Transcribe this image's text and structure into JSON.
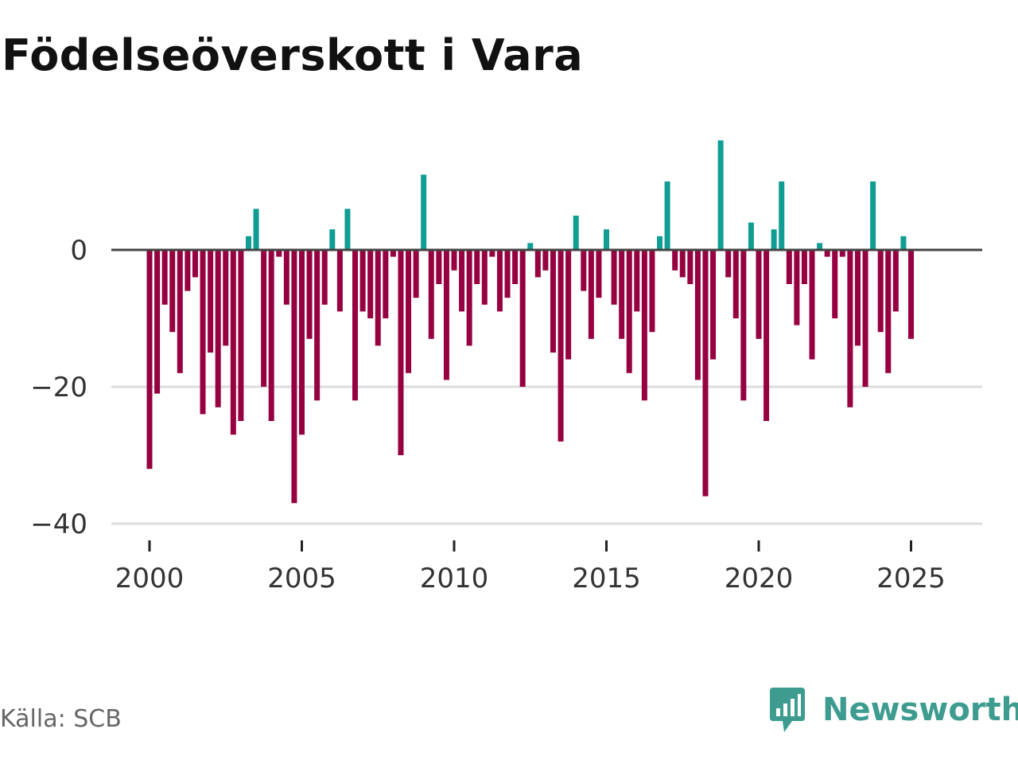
{
  "chart_data": {
    "type": "bar",
    "title": "Födelseöverskott i Vara",
    "xlabel": "",
    "ylabel": "",
    "ylim": [
      -42,
      17
    ],
    "yticks": [
      0,
      -20,
      -40
    ],
    "ytick_labels": [
      "0",
      "−20",
      "−40"
    ],
    "xticks": [
      2000,
      2005,
      2010,
      2015,
      2020,
      2025
    ],
    "xtick_labels": [
      "2000",
      "2005",
      "2010",
      "2015",
      "2020",
      "2025"
    ],
    "x_start": 2000.0,
    "x_step_years": 0.25,
    "positive_color": "#0f9d94",
    "negative_color": "#960040",
    "values": [
      -32,
      -21,
      -8,
      -12,
      -18,
      -6,
      -4,
      -24,
      -15,
      -23,
      -14,
      -27,
      -25,
      2,
      6,
      -20,
      -25,
      -1,
      -8,
      -37,
      -27,
      -13,
      -22,
      -8,
      3,
      -9,
      6,
      -22,
      -9,
      -10,
      -14,
      -10,
      -1,
      -30,
      -18,
      -7,
      11,
      -13,
      -5,
      -19,
      -3,
      -9,
      -14,
      -5,
      -8,
      -1,
      -9,
      -7,
      -5,
      -20,
      1,
      -4,
      -3,
      -15,
      -28,
      -16,
      5,
      -6,
      -13,
      -7,
      3,
      -8,
      -13,
      -18,
      -9,
      -22,
      -12,
      2,
      10,
      -3,
      -4,
      -5,
      -19,
      -36,
      -16,
      16,
      -4,
      -10,
      -22,
      4,
      -13,
      -25,
      3,
      10,
      -5,
      -11,
      -5,
      -16,
      1,
      -1,
      -10,
      -1,
      -23,
      -14,
      -20,
      10,
      -12,
      -18,
      -9,
      2,
      -13
    ]
  },
  "source": {
    "label": "Källa: SCB"
  },
  "brand": {
    "name": "Newsworthy",
    "icon": "newsworthy-logo-icon",
    "color": "#3d9c8f"
  }
}
